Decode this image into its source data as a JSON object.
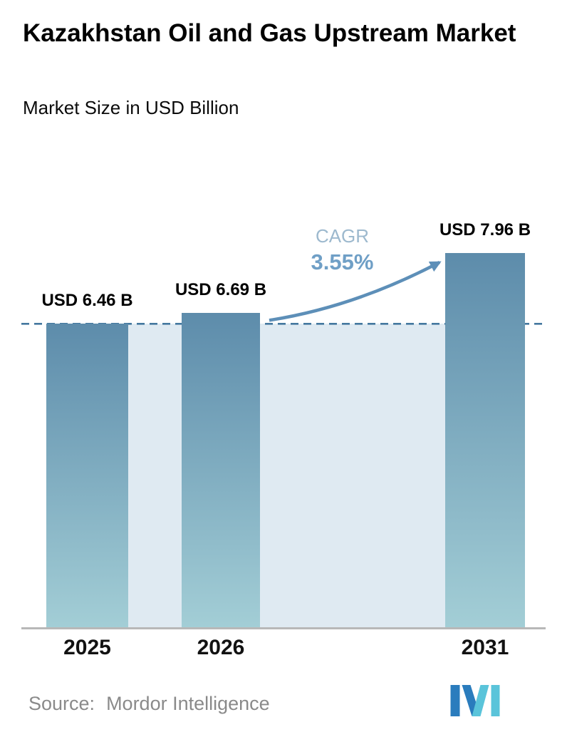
{
  "header": {
    "title": "Kazakhstan Oil and Gas Upstream Market",
    "subtitle": "Market Size in USD Billion"
  },
  "chart_data": {
    "type": "bar",
    "title": "Kazakhstan Oil and Gas Upstream Market",
    "subtitle": "Market Size in USD Billion",
    "categories": [
      "2025",
      "2026",
      "2031"
    ],
    "values": [
      6.46,
      6.69,
      7.96
    ],
    "bar_labels": [
      "USD 6.46 B",
      "USD 6.69 B",
      "USD 7.96 B"
    ],
    "xlabel": "",
    "ylabel": "",
    "grid": false,
    "legend": false,
    "annotations": {
      "cagr_label": "CAGR",
      "cagr_value": "3.55%"
    },
    "reference_line": {
      "value": 6.46,
      "style": "dashed"
    },
    "colors": {
      "bar_top": "#5d8cab",
      "bar_bottom": "#a3ced6",
      "band": "#dfeaf2",
      "dashed_line": "#44789f",
      "arrow": "#5d8fb8",
      "cagr_label": "#9db9ce",
      "cagr_value": "#6f9fc6",
      "axis_line": "#b8b8b8"
    }
  },
  "footer": {
    "source_label": "Source:",
    "source_value": "Mordor Intelligence",
    "logo_name": "mordor-intelligence-logo",
    "logo_colors": {
      "blue": "#2a7cbd",
      "teal": "#5ac4da"
    }
  }
}
